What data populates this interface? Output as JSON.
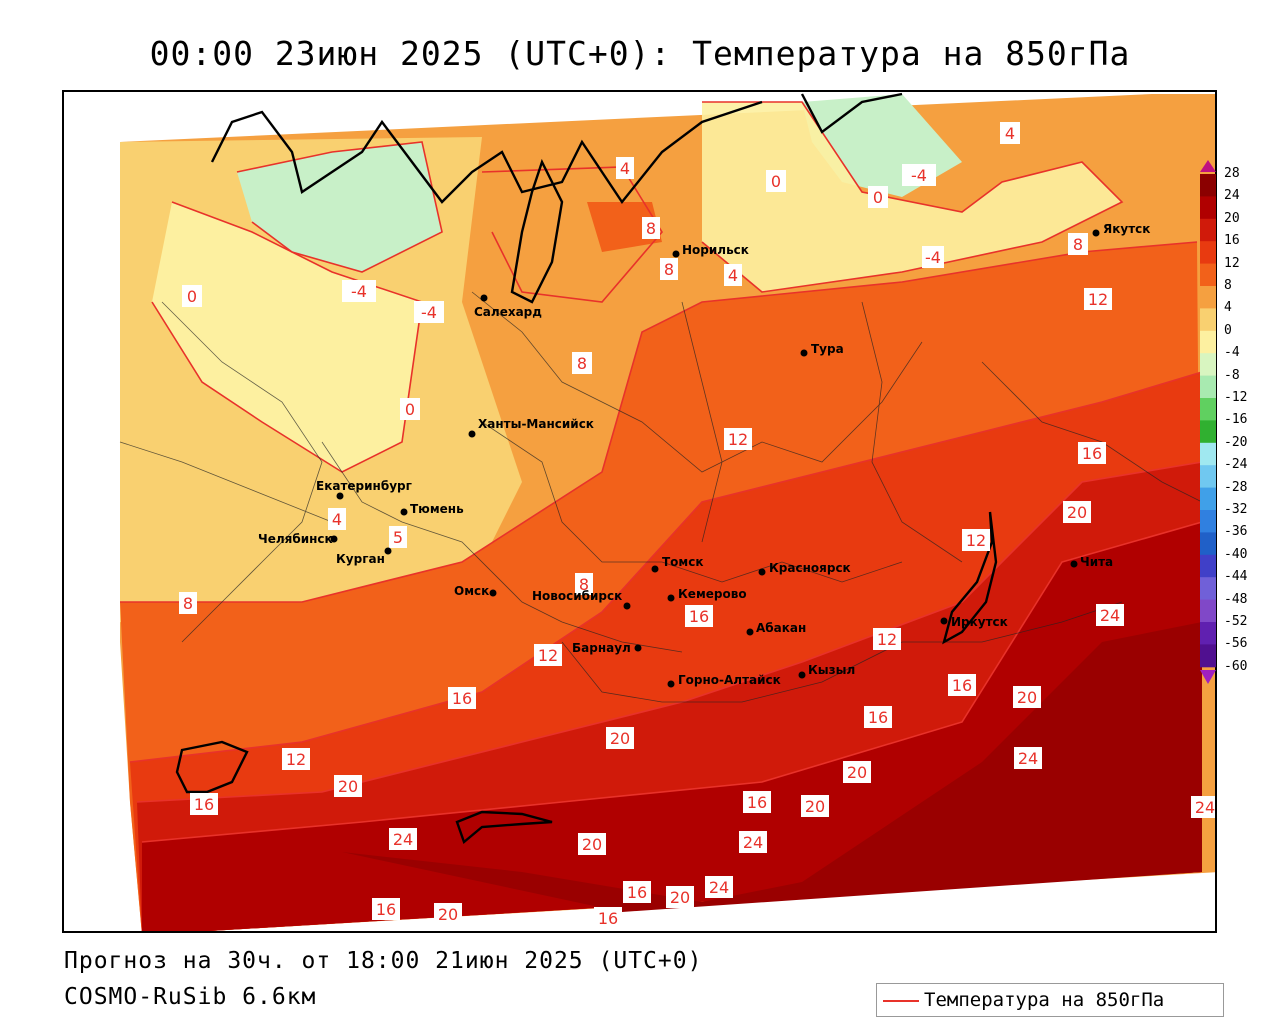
{
  "title": "00:00 23июн 2025 (UTC+0): Температура на 850гПа",
  "forecast_line": "Прогноз на 30ч. от 18:00 21июн 2025 (UTC+0)",
  "model_line": "COSMO-RuSib 6.6км",
  "legend": {
    "label": "Температура на 850гПа",
    "line_color": "#e8322a"
  },
  "colorbar": {
    "ticks": [
      "28",
      "24",
      "20",
      "16",
      "12",
      "8",
      "4",
      "0",
      "-4",
      "-8",
      "-12",
      "-16",
      "-20",
      "-24",
      "-28",
      "-32",
      "-36",
      "-40",
      "-44",
      "-48",
      "-52",
      "-56",
      "-60"
    ],
    "colors": [
      "#8b0000",
      "#b00000",
      "#d01a0a",
      "#e83a10",
      "#f2611a",
      "#f5a040",
      "#f9d070",
      "#fdf0a0",
      "#d8f5c0",
      "#a8eab0",
      "#60d060",
      "#30b030",
      "#a0e8f0",
      "#70c8f0",
      "#40a0e8",
      "#3080e0",
      "#2060c8",
      "#4040c8",
      "#7060d8",
      "#8048c8",
      "#6020b0",
      "#501090"
    ]
  },
  "cities": [
    {
      "name": "Якутск"
    },
    {
      "name": "Норильск"
    },
    {
      "name": "Салехард"
    },
    {
      "name": "Тура"
    },
    {
      "name": "Ханты-Мансийск"
    },
    {
      "name": "Екатеринбург"
    },
    {
      "name": "Тюмень"
    },
    {
      "name": "Челябинск"
    },
    {
      "name": "Курган"
    },
    {
      "name": "Омск"
    },
    {
      "name": "Новосибирск"
    },
    {
      "name": "Томск"
    },
    {
      "name": "Кемерово"
    },
    {
      "name": "Красноярск"
    },
    {
      "name": "Барнаул"
    },
    {
      "name": "Абакан"
    },
    {
      "name": "Горно-Алтайск"
    },
    {
      "name": "Кызыл"
    },
    {
      "name": "Иркутск"
    },
    {
      "name": "Чита"
    }
  ],
  "contour_labels": [
    "4",
    "0",
    "-4",
    "8",
    "4",
    "-4",
    "0",
    "4",
    "8",
    "0",
    "-4",
    "-4",
    "8",
    "12",
    "8",
    "0",
    "12",
    "16",
    "4",
    "5",
    "8",
    "8",
    "20",
    "12",
    "12",
    "24",
    "16",
    "20",
    "16",
    "12",
    "16",
    "20",
    "16",
    "20",
    "24",
    "20",
    "16",
    "24",
    "24",
    "20",
    "16",
    "20",
    "24",
    "16",
    "20",
    "12",
    "24",
    "16",
    "16",
    "20"
  ],
  "colors": {
    "contour": "#e8322a",
    "label_bg": "#ffffff"
  }
}
